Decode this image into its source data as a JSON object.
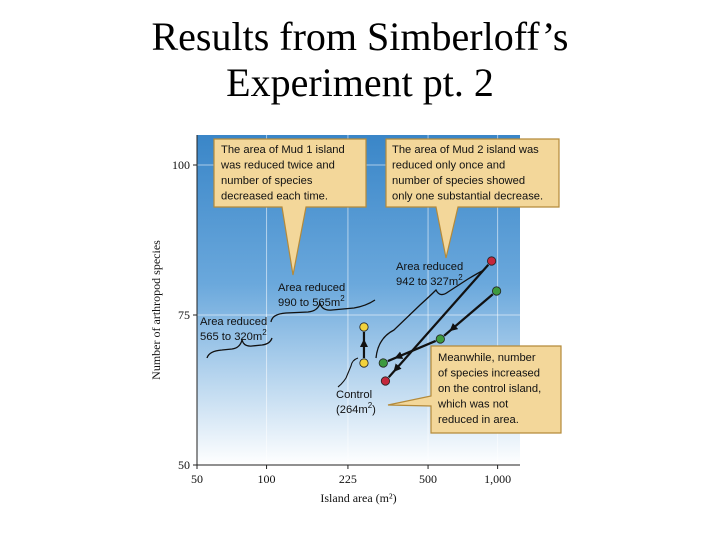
{
  "title": {
    "line1": "Results from Simberloff’s",
    "line2": "Experiment pt. 2"
  },
  "colors": {
    "plot_bg_top": "#3a86c8",
    "plot_bg_bottom": "#ffffff",
    "callout_fill": "#f3d79a",
    "callout_stroke": "#b48a3a",
    "green_point": "#3e9a3e",
    "red_point": "#c4283c",
    "yellow_point": "#f2d23c",
    "line": "#111111"
  },
  "chart_data": {
    "type": "line",
    "xlabel": "Island area (m²)",
    "ylabel": "Number of arthropod species",
    "x_scale": "log",
    "xlim": [
      50,
      1250
    ],
    "ylim": [
      50,
      105
    ],
    "x_ticks": [
      {
        "value": 50,
        "label": "50"
      },
      {
        "value": 100,
        "label": "100"
      },
      {
        "value": 225,
        "label": "225"
      },
      {
        "value": 500,
        "label": "500"
      },
      {
        "value": 1000,
        "label": "1,000"
      }
    ],
    "y_ticks": [
      {
        "value": 100,
        "label": "100"
      },
      {
        "value": 75,
        "label": "75"
      },
      {
        "value": 50,
        "label": "50"
      }
    ],
    "grid": true,
    "series": [
      {
        "id": "mud1",
        "color_key": "green_point",
        "points": [
          {
            "x": 990,
            "y": 79
          },
          {
            "x": 565,
            "y": 71
          },
          {
            "x": 320,
            "y": 67
          }
        ]
      },
      {
        "id": "mud2",
        "color_key": "red_point",
        "points": [
          {
            "x": 942,
            "y": 84
          },
          {
            "x": 327,
            "y": 64
          }
        ]
      },
      {
        "id": "control",
        "color_key": "yellow_point",
        "points": [
          {
            "x": 264,
            "y": 67
          },
          {
            "x": 264,
            "y": 73
          }
        ]
      }
    ],
    "annotations": {
      "callout_mud1": [
        "The area of Mud 1 island",
        "was reduced twice and",
        "number of species",
        "decreased each time."
      ],
      "callout_mud2": [
        "The area of Mud 2 island was",
        "reduced only once and",
        "number of species showed",
        "only one substantial decrease."
      ],
      "callout_control": [
        "Meanwhile, number",
        "of species increased",
        "on the control island,",
        "which was not",
        "reduced in area."
      ],
      "label_990": [
        "Area reduced",
        "990 to 565m"
      ],
      "label_565": [
        "Area reduced",
        "565 to 320m"
      ],
      "label_942": [
        "Area reduced",
        "942 to 327m"
      ],
      "label_control": [
        "Control",
        "(264m"
      ],
      "superscript_2": "2",
      "close_paren": ")"
    }
  }
}
